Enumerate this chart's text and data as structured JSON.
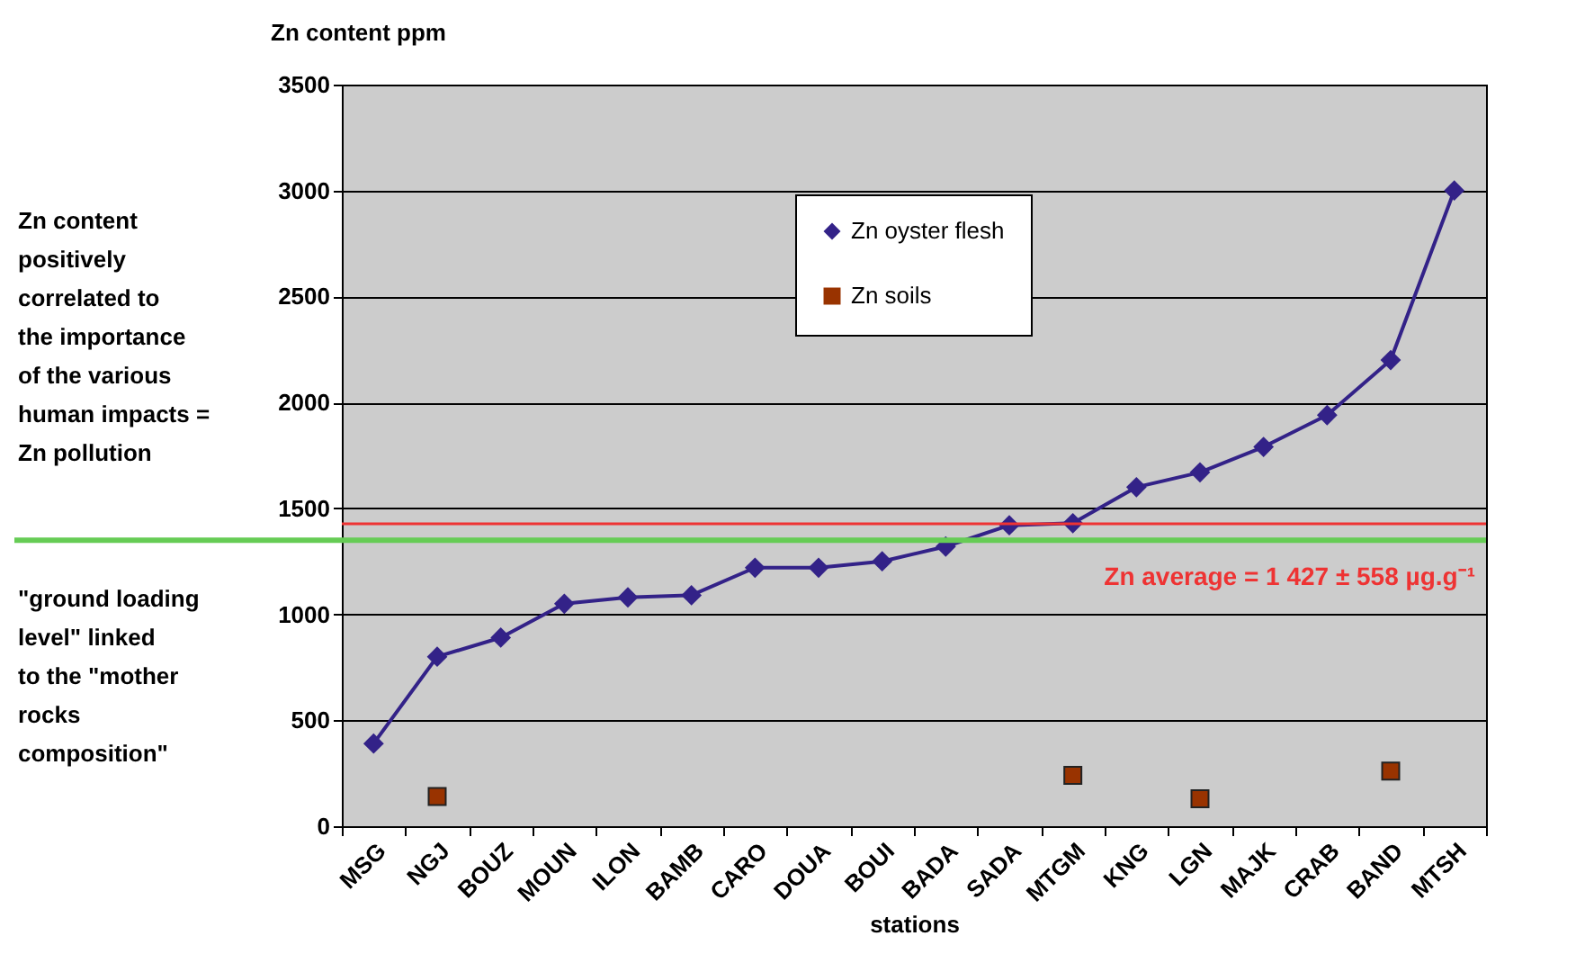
{
  "chart_data": {
    "type": "line",
    "xlabel": "stations",
    "ylabel": "Zn content ppm",
    "categories": [
      "MSG",
      "NGJ",
      "BOUZ",
      "MOUN",
      "ILON",
      "BAMB",
      "CARO",
      "DOUA",
      "BOUI",
      "BADA",
      "SADA",
      "MTGM",
      "KNG",
      "LGN",
      "MAJK",
      "CRAB",
      "BAND",
      "MTSH"
    ],
    "series": [
      {
        "name": "Zn oyster flesh",
        "type": "line",
        "marker": "diamond",
        "color": "#332288",
        "values": [
          390,
          800,
          890,
          1050,
          1080,
          1090,
          1220,
          1220,
          1250,
          1320,
          1420,
          1430,
          1600,
          1670,
          1790,
          1940,
          2200,
          3000
        ]
      },
      {
        "name": "Zn soils",
        "type": "scatter",
        "marker": "square",
        "color": "#993300",
        "values": [
          null,
          140,
          null,
          null,
          null,
          null,
          null,
          null,
          null,
          null,
          null,
          240,
          null,
          130,
          null,
          null,
          260,
          null
        ]
      }
    ],
    "ylim": [
      0,
      3500
    ],
    "yticks": [
      0,
      500,
      1000,
      1500,
      2000,
      2500,
      3000,
      3500
    ],
    "grid": "y",
    "legend": "top",
    "ref_lines": [
      {
        "axis": "y",
        "value": 1427,
        "label": "Zn average = 1 427 ± 558 µg.g⁻¹",
        "color": "#ee3333"
      },
      {
        "axis": "y",
        "value": 1350,
        "color": "#66cc55"
      }
    ],
    "annotations": [
      "Zn content positively correlated to the importance of the various human impacts = Zn pollution",
      "\"ground loading level\" linked to the \"mother rocks composition\""
    ]
  }
}
